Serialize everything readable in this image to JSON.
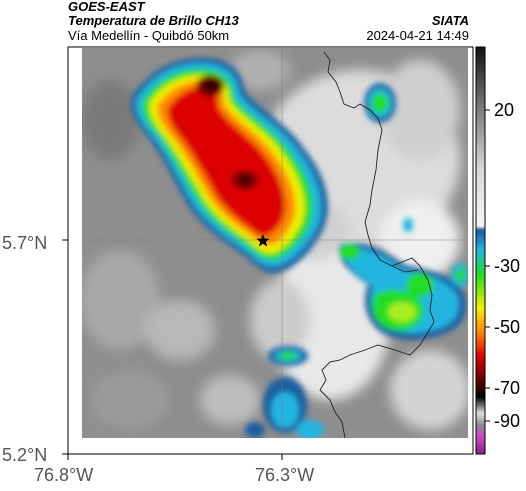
{
  "header": {
    "satellite": "GOES-EAST",
    "product": "Temperatura de Brillo CH13",
    "route": "Vía Medellín - Quibdó 50km",
    "source": "SIATA",
    "timestamp": "2024-04-21 14:49"
  },
  "axes": {
    "lat_labels": [
      "5.7°N",
      "5.2°N"
    ],
    "lon_labels": [
      "76.8°W",
      "76.3°W"
    ]
  },
  "colorbar": {
    "tick_labels": [
      "20",
      "-30",
      "-50",
      "-70",
      "-90"
    ],
    "colors": {
      "warm_gray_top": "#222222",
      "cyan": "#22b5e0",
      "green": "#22dd22",
      "yellow": "#f0f000",
      "orange": "#ff8800",
      "red": "#dd0000",
      "black": "#000000",
      "magenta": "#cc44cc"
    }
  },
  "map": {
    "marker": "star-marker",
    "colors": {
      "background_gray": "#8c8c8c",
      "light_cloud": "#e6e6e6",
      "cold_core": "#cc0000",
      "border_line": "#222222"
    }
  }
}
